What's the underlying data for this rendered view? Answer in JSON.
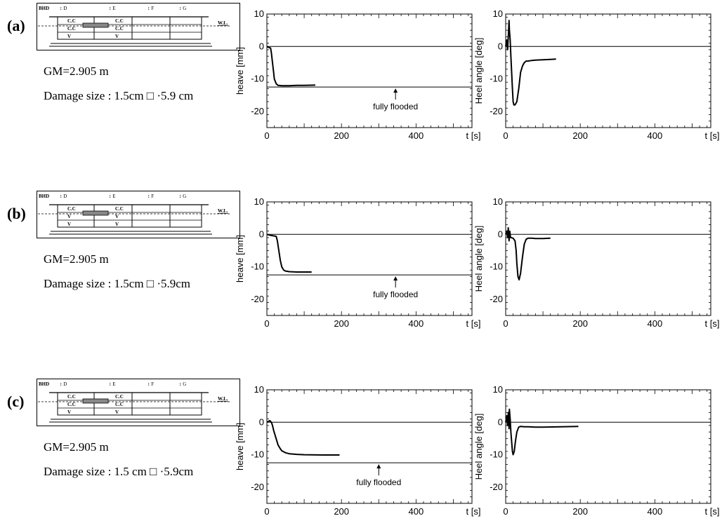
{
  "panels": [
    {
      "label": "(a)",
      "gm": "GM=2.905 m",
      "damage": "Damage size : 1.5cm □ ·5.9 cm",
      "schematic": {
        "bulkhead": "BHD",
        "cols": [
          "↕ D",
          "↕ E",
          "↕ F",
          "↕ G"
        ],
        "waterline": "W.L.",
        "left_cells": [
          "C.C",
          "C.C",
          "V"
        ],
        "right_cells": [
          "C.C",
          "C.C",
          "V"
        ]
      }
    },
    {
      "label": "(b)",
      "gm": "GM=2.905 m",
      "damage": "Damage size : 1.5cm □ ·5.9cm",
      "schematic": {
        "bulkhead": "BHD",
        "cols": [
          "↕ D",
          "↕ E",
          "↕ F",
          "↕ G"
        ],
        "waterline": "W.L.",
        "left_cells": [
          "C.C",
          "V",
          "V"
        ],
        "right_cells": [
          "C.C",
          "V",
          "V"
        ]
      }
    },
    {
      "label": "(c)",
      "gm": "GM=2.905 m",
      "damage": "Damage size : 1.5 cm □ ·5.9cm",
      "schematic": {
        "bulkhead": "BHD",
        "cols": [
          "↕ D",
          "↕ E",
          "↕ F",
          "↕ G"
        ],
        "waterline": "W.L.",
        "left_cells": [
          "C.C",
          "C.C",
          "V"
        ],
        "right_cells": [
          "C.C",
          "C.C",
          "V"
        ]
      }
    }
  ],
  "chart_data": [
    {
      "type": "line",
      "panel": "(a)",
      "variable": "heave",
      "ylabel": "heave [mm]",
      "xlabel": "t [s]",
      "xlim": [
        0,
        550
      ],
      "ylim": [
        -25,
        10
      ],
      "xticks": [
        0,
        200,
        400
      ],
      "yticks": [
        10,
        0,
        -10,
        -20
      ],
      "reference_lines": [
        {
          "y": 0
        },
        {
          "y": -12.5,
          "label": "fully flooded",
          "label_x": 345
        }
      ],
      "series": [
        {
          "x": [
            0,
            5,
            10,
            12,
            15,
            18,
            20,
            25,
            30,
            40,
            60,
            80,
            100,
            130
          ],
          "y": [
            0,
            -0.3,
            -0.5,
            -2,
            -5,
            -8,
            -10,
            -11.5,
            -12,
            -12.1,
            -12.1,
            -12.0,
            -12.0,
            -11.9
          ]
        }
      ]
    },
    {
      "type": "line",
      "panel": "(a)",
      "variable": "heel",
      "ylabel": "Heel angle [deg]",
      "xlabel": "t [s]",
      "xlim": [
        0,
        550
      ],
      "ylim": [
        -25,
        10
      ],
      "xticks": [
        0,
        200,
        400
      ],
      "yticks": [
        10,
        0,
        -10,
        -20
      ],
      "reference_lines": [
        {
          "y": 0
        }
      ],
      "series": [
        {
          "x": [
            0,
            3,
            5,
            7,
            9,
            10,
            12,
            14,
            16,
            18,
            20,
            22,
            25,
            30,
            35,
            40,
            45,
            50,
            55,
            60,
            70,
            80,
            100,
            120,
            135
          ],
          "y": [
            0,
            2,
            -1,
            3,
            8,
            5,
            2,
            -3,
            -8,
            -13,
            -17,
            -18,
            -18,
            -17,
            -13,
            -8,
            -6,
            -5,
            -4.5,
            -4.5,
            -4.3,
            -4.2,
            -4.1,
            -4.0,
            -3.9
          ]
        }
      ]
    },
    {
      "type": "line",
      "panel": "(b)",
      "variable": "heave",
      "ylabel": "heave [mm]",
      "xlabel": "t [s]",
      "xlim": [
        0,
        550
      ],
      "ylim": [
        -25,
        10
      ],
      "xticks": [
        0,
        200,
        400
      ],
      "yticks": [
        10,
        0,
        -10,
        -20
      ],
      "reference_lines": [
        {
          "y": 0
        },
        {
          "y": -12.5,
          "label": "fully flooded",
          "label_x": 345
        }
      ],
      "series": [
        {
          "x": [
            0,
            10,
            20,
            25,
            28,
            32,
            36,
            40,
            45,
            50,
            60,
            80,
            100,
            120
          ],
          "y": [
            0,
            -0.3,
            -0.5,
            -0.6,
            -2,
            -5,
            -8,
            -10,
            -11,
            -11.3,
            -11.5,
            -11.6,
            -11.6,
            -11.6
          ]
        }
      ]
    },
    {
      "type": "line",
      "panel": "(b)",
      "variable": "heel",
      "ylabel": "Heel angle [deg]",
      "xlabel": "t [s]",
      "xlim": [
        0,
        550
      ],
      "ylim": [
        -25,
        10
      ],
      "xticks": [
        0,
        200,
        400
      ],
      "yticks": [
        10,
        0,
        -10,
        -20
      ],
      "reference_lines": [
        {
          "y": 0
        }
      ],
      "series": [
        {
          "x": [
            0,
            3,
            5,
            7,
            9,
            11,
            13,
            15,
            20,
            25,
            28,
            30,
            33,
            36,
            40,
            45,
            50,
            55,
            60,
            70,
            80,
            100,
            120
          ],
          "y": [
            0,
            1,
            -1,
            2,
            -2,
            1,
            -1,
            -1,
            -1.2,
            -2,
            -5,
            -9,
            -13,
            -14,
            -12,
            -7,
            -3,
            -1.5,
            -1.2,
            -1.2,
            -1.3,
            -1.3,
            -1.2
          ]
        }
      ]
    },
    {
      "type": "line",
      "panel": "(c)",
      "variable": "heave",
      "ylabel": "heave [mm]",
      "xlabel": "t [s]",
      "xlim": [
        0,
        550
      ],
      "ylim": [
        -25,
        10
      ],
      "xticks": [
        0,
        200,
        400
      ],
      "yticks": [
        10,
        0,
        -10,
        -20
      ],
      "reference_lines": [
        {
          "y": 0
        },
        {
          "y": -12.5,
          "label": "fully flooded",
          "label_x": 300
        }
      ],
      "series": [
        {
          "x": [
            0,
            8,
            12,
            15,
            18,
            22,
            26,
            30,
            35,
            40,
            50,
            60,
            80,
            100,
            150,
            195
          ],
          "y": [
            0,
            0.5,
            0,
            -1,
            -2.5,
            -4,
            -5.5,
            -7,
            -8,
            -8.8,
            -9.4,
            -9.7,
            -9.9,
            -10.0,
            -10.1,
            -10.1
          ]
        }
      ]
    },
    {
      "type": "line",
      "panel": "(c)",
      "variable": "heel",
      "ylabel": "Heel angle [deg]",
      "xlabel": "t [s]",
      "xlim": [
        0,
        550
      ],
      "ylim": [
        -25,
        10
      ],
      "xticks": [
        0,
        200,
        400
      ],
      "yticks": [
        10,
        0,
        -10,
        -20
      ],
      "reference_lines": [
        {
          "y": 0
        }
      ],
      "series": [
        {
          "x": [
            0,
            3,
            5,
            7,
            9,
            10,
            12,
            14,
            16,
            18,
            20,
            23,
            26,
            30,
            35,
            40,
            50,
            60,
            80,
            100,
            150,
            195
          ],
          "y": [
            0,
            2,
            -1,
            3,
            -2,
            4,
            1,
            -3,
            -6,
            -9,
            -10,
            -9,
            -6,
            -3,
            -1.5,
            -1.3,
            -1.4,
            -1.4,
            -1.5,
            -1.5,
            -1.4,
            -1.3
          ]
        }
      ]
    }
  ]
}
